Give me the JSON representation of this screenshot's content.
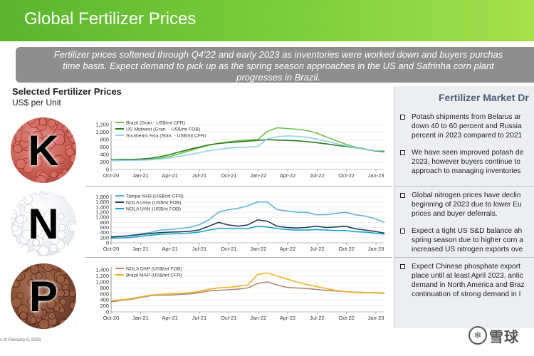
{
  "page": {
    "title": "Global Fertilizer Prices",
    "summary": "Fertilizer prices softened through Q4'22 and early 2023 as inventories were worked down and buyers purchas\ntime basis. Expect demand to pick up as the spring season approaches in the US and Safrinha corn plant\nprogresses in Brazil.",
    "left_title": "Selected Fertilizer Prices",
    "left_unit": "US$ per Unit",
    "footnote": "s of February 8, 2023.",
    "watermark_text": "雪球"
  },
  "nutrients": [
    {
      "letter": "K",
      "icon": "potash-pellets-icon",
      "color": "#c45a4f"
    },
    {
      "letter": "N",
      "icon": "nitrogen-pellets-icon",
      "color": "#eef0f4"
    },
    {
      "letter": "P",
      "icon": "phosphate-pellets-icon",
      "color": "#7a4630"
    }
  ],
  "right_panel": {
    "title": "Fertilizer Market Dr",
    "sections": [
      {
        "bullets": [
          "Potash shipments from Belarus ar\ndown 40 to 60 percent and Russia\npercent in 2023 compared to 2021",
          "We have seen improved potash de\n2023, however buyers continue to\napproach to managing inventories"
        ]
      },
      {
        "bullets": [
          "Global nitrogen prices have declin\nbeginning of 2023 due to lower Eu\nprices and buyer deferrals.",
          "Expect a tight US S&D balance ah\nspring season due to higher corn a\nincreased US nitrogen exports ove"
        ]
      },
      {
        "bullets": [
          "Expect Chinese phosphate export\nplace until at least April 2023, antic\ndemand in North America and Braz\ncontinuation of strong demand in I"
        ]
      }
    ]
  },
  "chart_data": [
    {
      "type": "line",
      "nutrient": "K",
      "xticks": [
        "Oct-20",
        "Jan-21",
        "Apr-21",
        "Jul-21",
        "Oct-21",
        "Jan-22",
        "Apr-22",
        "Jul-22",
        "Oct-22",
        "Jan-23"
      ],
      "yticks": [
        0,
        200,
        400,
        600,
        800,
        1000,
        1200
      ],
      "ylim": [
        0,
        1300
      ],
      "legend_position": "top-left",
      "series": [
        {
          "name": "Brazil (Gran.- US$/mt CFR)",
          "color": "#6cc04a",
          "x": [
            0,
            1,
            2,
            3,
            4,
            5,
            6,
            7,
            8,
            9,
            10,
            11,
            12,
            13,
            14,
            15,
            16,
            17,
            18,
            19,
            20,
            21,
            22,
            23,
            24,
            25,
            26,
            27,
            28
          ],
          "y": [
            250,
            250,
            255,
            260,
            270,
            300,
            350,
            420,
            500,
            580,
            650,
            700,
            740,
            770,
            790,
            800,
            1020,
            1120,
            1100,
            1080,
            1050,
            980,
            880,
            780,
            680,
            600,
            550,
            500,
            470
          ]
        },
        {
          "name": "US Midwest (Gran. - US$/mt FOB)",
          "color": "#2e7d1e",
          "x": [
            0,
            1,
            2,
            3,
            4,
            5,
            6,
            7,
            8,
            9,
            10,
            11,
            12,
            13,
            14,
            15,
            16,
            17,
            18,
            19,
            20,
            21,
            22,
            23,
            24,
            25,
            26,
            27,
            28
          ],
          "y": [
            260,
            265,
            270,
            280,
            300,
            340,
            400,
            470,
            540,
            600,
            660,
            700,
            720,
            740,
            760,
            780,
            800,
            790,
            780,
            770,
            750,
            720,
            690,
            650,
            620,
            580,
            540,
            500,
            480
          ]
        },
        {
          "name": "Southeast Asia (Stan. - US$/mt CFR)",
          "color": "#8fd3e8",
          "x": [
            0,
            1,
            2,
            3,
            4,
            5,
            6,
            7,
            8,
            9,
            10,
            11,
            12,
            13,
            14,
            15,
            16,
            17,
            18,
            19,
            20,
            21,
            22,
            23,
            24,
            25,
            26,
            27,
            28
          ],
          "y": [
            240,
            240,
            245,
            250,
            260,
            280,
            310,
            350,
            400,
            450,
            500,
            540,
            570,
            590,
            600,
            610,
            820,
            880,
            900,
            890,
            870,
            820,
            760,
            700,
            640,
            580,
            540,
            510,
            500
          ]
        }
      ]
    },
    {
      "type": "line",
      "nutrient": "N",
      "xticks": [
        "Oct-20",
        "Jan-21",
        "Apr-21",
        "Jul-21",
        "Oct-21",
        "Jan-22",
        "Apr-22",
        "Jul-22",
        "Oct-22",
        "Jan-23"
      ],
      "yticks": [
        0,
        200,
        400,
        600,
        800,
        1000,
        1200,
        1400,
        1600,
        1800
      ],
      "ylim": [
        0,
        1900
      ],
      "legend_position": "top-left",
      "series": [
        {
          "name": "Tampa NH3 (US$/mt CFR)",
          "color": "#5fb3d6",
          "x": [
            0,
            1,
            2,
            3,
            4,
            5,
            6,
            7,
            8,
            9,
            10,
            11,
            12,
            13,
            14,
            15,
            16,
            17,
            18,
            19,
            20,
            21,
            22,
            23,
            24,
            25,
            26,
            27,
            28
          ],
          "y": [
            220,
            250,
            300,
            350,
            400,
            500,
            520,
            560,
            600,
            700,
            900,
            1200,
            1300,
            1350,
            1450,
            1600,
            1600,
            1300,
            1250,
            1200,
            1200,
            1100,
            1100,
            1150,
            1200,
            1100,
            1050,
            950,
            800
          ]
        },
        {
          "name": "NOLA Urea (US$/st FOB)",
          "color": "#1f3f5b",
          "x": [
            0,
            1,
            2,
            3,
            4,
            5,
            6,
            7,
            8,
            9,
            10,
            11,
            12,
            13,
            14,
            15,
            16,
            17,
            18,
            19,
            20,
            21,
            22,
            23,
            24,
            25,
            26,
            27,
            28
          ],
          "y": [
            230,
            250,
            280,
            320,
            360,
            400,
            420,
            430,
            450,
            500,
            650,
            800,
            700,
            650,
            700,
            900,
            850,
            650,
            600,
            580,
            600,
            650,
            600,
            620,
            650,
            550,
            500,
            450,
            380
          ]
        },
        {
          "name": "NOLA UAN (US$/st FOB)",
          "color": "#1aa0c8",
          "x": [
            0,
            1,
            2,
            3,
            4,
            5,
            6,
            7,
            8,
            9,
            10,
            11,
            12,
            13,
            14,
            15,
            16,
            17,
            18,
            19,
            20,
            21,
            22,
            23,
            24,
            25,
            26,
            27,
            28
          ],
          "y": [
            180,
            190,
            210,
            250,
            300,
            330,
            350,
            360,
            380,
            420,
            500,
            560,
            560,
            550,
            560,
            650,
            620,
            560,
            520,
            500,
            500,
            520,
            500,
            480,
            480,
            440,
            420,
            380,
            340
          ]
        }
      ]
    },
    {
      "type": "line",
      "nutrient": "P",
      "xticks": [
        "Oct-20",
        "Jan-21",
        "Apr-21",
        "Jul-21",
        "Oct-21",
        "Jan-22",
        "Apr-22",
        "Jul-22",
        "Oct-22",
        "Jan-23"
      ],
      "yticks": [
        0,
        200,
        400,
        600,
        800,
        1000,
        1200,
        1400
      ],
      "ylim": [
        0,
        1500
      ],
      "legend_position": "top-left",
      "series": [
        {
          "name": "NOLA DAP (US$/mt FOB)",
          "color": "#b08a7a",
          "x": [
            0,
            1,
            2,
            3,
            4,
            5,
            6,
            7,
            8,
            9,
            10,
            11,
            12,
            13,
            14,
            15,
            16,
            17,
            18,
            19,
            20,
            21,
            22,
            23,
            24,
            25,
            26,
            27,
            28
          ],
          "y": [
            330,
            380,
            420,
            480,
            540,
            560,
            560,
            580,
            600,
            640,
            700,
            720,
            740,
            760,
            800,
            950,
            1000,
            900,
            820,
            800,
            780,
            750,
            720,
            700,
            680,
            660,
            650,
            640,
            620
          ]
        },
        {
          "name": "Brazil MAP (US$/mt CFR)",
          "color": "#f0b429",
          "x": [
            0,
            1,
            2,
            3,
            4,
            5,
            6,
            7,
            8,
            9,
            10,
            11,
            12,
            13,
            14,
            15,
            16,
            17,
            18,
            19,
            20,
            21,
            22,
            23,
            24,
            25,
            26,
            27,
            28
          ],
          "y": [
            380,
            400,
            440,
            500,
            560,
            580,
            600,
            620,
            640,
            680,
            760,
            800,
            820,
            850,
            900,
            1250,
            1300,
            1200,
            1100,
            1000,
            920,
            850,
            780,
            720,
            680,
            650,
            640,
            650,
            630
          ]
        }
      ]
    }
  ]
}
